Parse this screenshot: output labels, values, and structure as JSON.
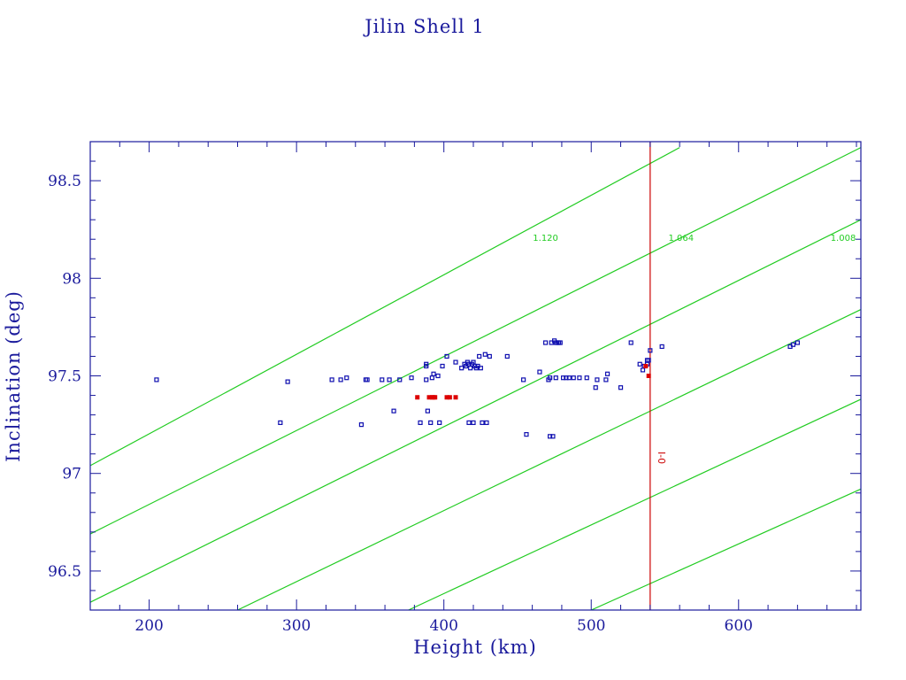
{
  "chart_data": {
    "type": "scatter",
    "title": "Jilin Shell 1",
    "xlabel": "Height (km)",
    "ylabel": "Inclination (deg)",
    "xlim": [
      160,
      683
    ],
    "ylim": [
      96.3,
      98.7
    ],
    "xticks": [
      200,
      300,
      400,
      500,
      600
    ],
    "yticks": [
      96.5,
      97,
      97.5,
      98,
      98.5
    ],
    "xtick_labels": [
      "200",
      "300",
      "400",
      "500",
      "600"
    ],
    "ytick_labels": [
      "96.5",
      "97",
      "97.5",
      "98",
      "98.5"
    ],
    "grid": false,
    "colors": {
      "axes": "#1a1a9c",
      "points": "#1010b0",
      "highlight": "#dd0000",
      "reference_lines": "#22cc22",
      "vertical_line": "#cc0000"
    },
    "reference_lines": [
      {
        "name": "1.120",
        "points": [
          [
            160,
            97.04
          ],
          [
            560,
            98.67
          ]
        ]
      },
      {
        "name": "1.064",
        "points": [
          [
            160,
            96.69
          ],
          [
            683,
            98.67
          ]
        ]
      },
      {
        "name": "1.008",
        "points": [
          [
            160,
            96.34
          ],
          [
            683,
            98.3
          ]
        ]
      },
      {
        "points": [
          [
            260,
            96.3
          ],
          [
            683,
            97.84
          ]
        ]
      },
      {
        "points": [
          [
            376,
            96.3
          ],
          [
            683,
            97.38
          ]
        ]
      },
      {
        "points": [
          [
            500,
            96.3
          ],
          [
            683,
            96.92
          ]
        ]
      }
    ],
    "reference_line_labels": [
      {
        "text": "1.120",
        "x": 469,
        "y": 98.21
      },
      {
        "text": "1.064",
        "x": 561,
        "y": 98.21
      },
      {
        "text": "1.008",
        "x": 671,
        "y": 98.21
      }
    ],
    "vertical_line": {
      "x": 540,
      "label": "I-0",
      "label_y": 97.08
    },
    "series": [
      {
        "values": [
          [
            205,
            97.48
          ],
          [
            289,
            97.26
          ],
          [
            294,
            97.47
          ],
          [
            324,
            97.48
          ],
          [
            330,
            97.48
          ],
          [
            334,
            97.49
          ],
          [
            344,
            97.25
          ],
          [
            347,
            97.48
          ],
          [
            348,
            97.48
          ],
          [
            358,
            97.48
          ],
          [
            363,
            97.48
          ],
          [
            366,
            97.32
          ],
          [
            370,
            97.48
          ],
          [
            378,
            97.49
          ],
          [
            384,
            97.26
          ],
          [
            388,
            97.48
          ],
          [
            388,
            97.55
          ],
          [
            388,
            97.56
          ],
          [
            389,
            97.32
          ],
          [
            391,
            97.26
          ],
          [
            392,
            97.49
          ],
          [
            393,
            97.51
          ],
          [
            396,
            97.5
          ],
          [
            397,
            97.26
          ],
          [
            399,
            97.55
          ],
          [
            402,
            97.6
          ],
          [
            408,
            97.57
          ],
          [
            412,
            97.54
          ],
          [
            414,
            97.56
          ],
          [
            415,
            97.55
          ],
          [
            416,
            97.57
          ],
          [
            417,
            97.56
          ],
          [
            417,
            97.26
          ],
          [
            418,
            97.54
          ],
          [
            419,
            97.56
          ],
          [
            420,
            97.57
          ],
          [
            420,
            97.26
          ],
          [
            421,
            97.55
          ],
          [
            422,
            97.54
          ],
          [
            423,
            97.55
          ],
          [
            424,
            97.6
          ],
          [
            425,
            97.54
          ],
          [
            426,
            97.26
          ],
          [
            428,
            97.61
          ],
          [
            429,
            97.26
          ],
          [
            431,
            97.6
          ],
          [
            443,
            97.6
          ],
          [
            454,
            97.48
          ],
          [
            456,
            97.2
          ],
          [
            465,
            97.52
          ],
          [
            469,
            97.67
          ],
          [
            471,
            97.48
          ],
          [
            472,
            97.19
          ],
          [
            472,
            97.49
          ],
          [
            473,
            97.67
          ],
          [
            474,
            97.19
          ],
          [
            475,
            97.68
          ],
          [
            476,
            97.67
          ],
          [
            476,
            97.49
          ],
          [
            477,
            97.67
          ],
          [
            478,
            97.67
          ],
          [
            479,
            97.67
          ],
          [
            481,
            97.49
          ],
          [
            483,
            97.49
          ],
          [
            485,
            97.49
          ],
          [
            488,
            97.49
          ],
          [
            492,
            97.49
          ],
          [
            497,
            97.49
          ],
          [
            503,
            97.44
          ],
          [
            504,
            97.48
          ],
          [
            510,
            97.48
          ],
          [
            511,
            97.51
          ],
          [
            520,
            97.44
          ],
          [
            527,
            97.67
          ],
          [
            533,
            97.56
          ],
          [
            535,
            97.53
          ],
          [
            536,
            97.55
          ],
          [
            538,
            97.56
          ],
          [
            538,
            97.58
          ],
          [
            539,
            97.58
          ],
          [
            540,
            97.63
          ],
          [
            548,
            97.65
          ],
          [
            635,
            97.65
          ],
          [
            637,
            97.66
          ],
          [
            640,
            97.67
          ]
        ]
      },
      {
        "values": [
          [
            382,
            97.39
          ],
          [
            390,
            97.39
          ],
          [
            392,
            97.39
          ],
          [
            393,
            97.39
          ],
          [
            394,
            97.39
          ],
          [
            402,
            97.39
          ],
          [
            404,
            97.39
          ],
          [
            408,
            97.39
          ],
          [
            537,
            97.55
          ],
          [
            539,
            97.5
          ]
        ]
      }
    ]
  }
}
